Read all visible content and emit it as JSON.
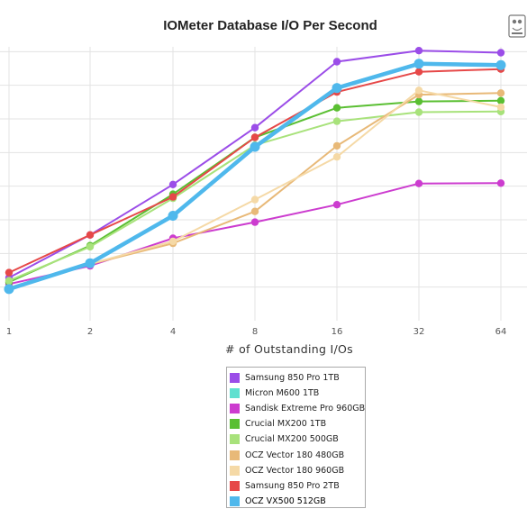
{
  "chart_data": {
    "type": "line",
    "title": "IOMeter Database I/O Per Second",
    "xlabel": "# of Outstanding I/Os",
    "ylabel": "",
    "x": [
      "1",
      "2",
      "4",
      "8",
      "16",
      "32",
      "64"
    ],
    "ylim": [
      0,
      9
    ],
    "grid": true,
    "legend_position": "bottom-center",
    "series": [
      {
        "name": "Samsung 850 Pro 1TB",
        "color": "#9b4de8",
        "values": [
          1.28,
          2.55,
          4.05,
          5.74,
          7.7,
          8.03,
          7.97
        ]
      },
      {
        "name": "Micron M600 1TB",
        "color": "#5fe0d0",
        "values": [
          0.93,
          1.72,
          3.1,
          5.2,
          6.95,
          7.67,
          7.63
        ]
      },
      {
        "name": "Sandisk Extreme Pro 960GB",
        "color": "#cc3ccf",
        "values": [
          1.09,
          1.63,
          2.45,
          2.93,
          3.45,
          4.08,
          4.09
        ]
      },
      {
        "name": "Crucial MX200 1TB",
        "color": "#5abf32",
        "values": [
          1.15,
          2.23,
          3.76,
          5.45,
          6.33,
          6.52,
          6.54
        ]
      },
      {
        "name": "Crucial MX200 500GB",
        "color": "#a8e27b",
        "values": [
          1.19,
          2.2,
          3.64,
          5.22,
          5.93,
          6.2,
          6.22
        ]
      },
      {
        "name": "OCZ Vector 180 480GB",
        "color": "#e8b978",
        "values": [
          0.98,
          1.68,
          2.3,
          3.25,
          5.2,
          6.72,
          6.77
        ]
      },
      {
        "name": "OCZ Vector 180 960GB",
        "color": "#f5d9a6",
        "values": [
          0.98,
          1.69,
          2.36,
          3.6,
          4.87,
          6.85,
          6.35
        ]
      },
      {
        "name": "Samsung 850 Pro 2TB",
        "color": "#e64848",
        "values": [
          1.43,
          2.55,
          3.68,
          5.45,
          6.8,
          7.4,
          7.48
        ]
      },
      {
        "name": "OCZ VX500 512GB",
        "color": "#4fb8ec",
        "values": [
          0.94,
          1.71,
          3.12,
          5.17,
          6.92,
          7.64,
          7.6
        ]
      }
    ]
  },
  "legend": {
    "items": [
      "Samsung 850 Pro 1TB",
      "Micron M600 1TB",
      "Sandisk Extreme Pro 960GB",
      "Crucial MX200 1TB",
      "Crucial MX200 500GB",
      "OCZ Vector 180 480GB",
      "OCZ Vector 180 960GB",
      "Samsung 850 Pro 2TB",
      "OCZ VX500 512GB"
    ]
  },
  "logo": {
    "icon": "site-logo-icon"
  }
}
